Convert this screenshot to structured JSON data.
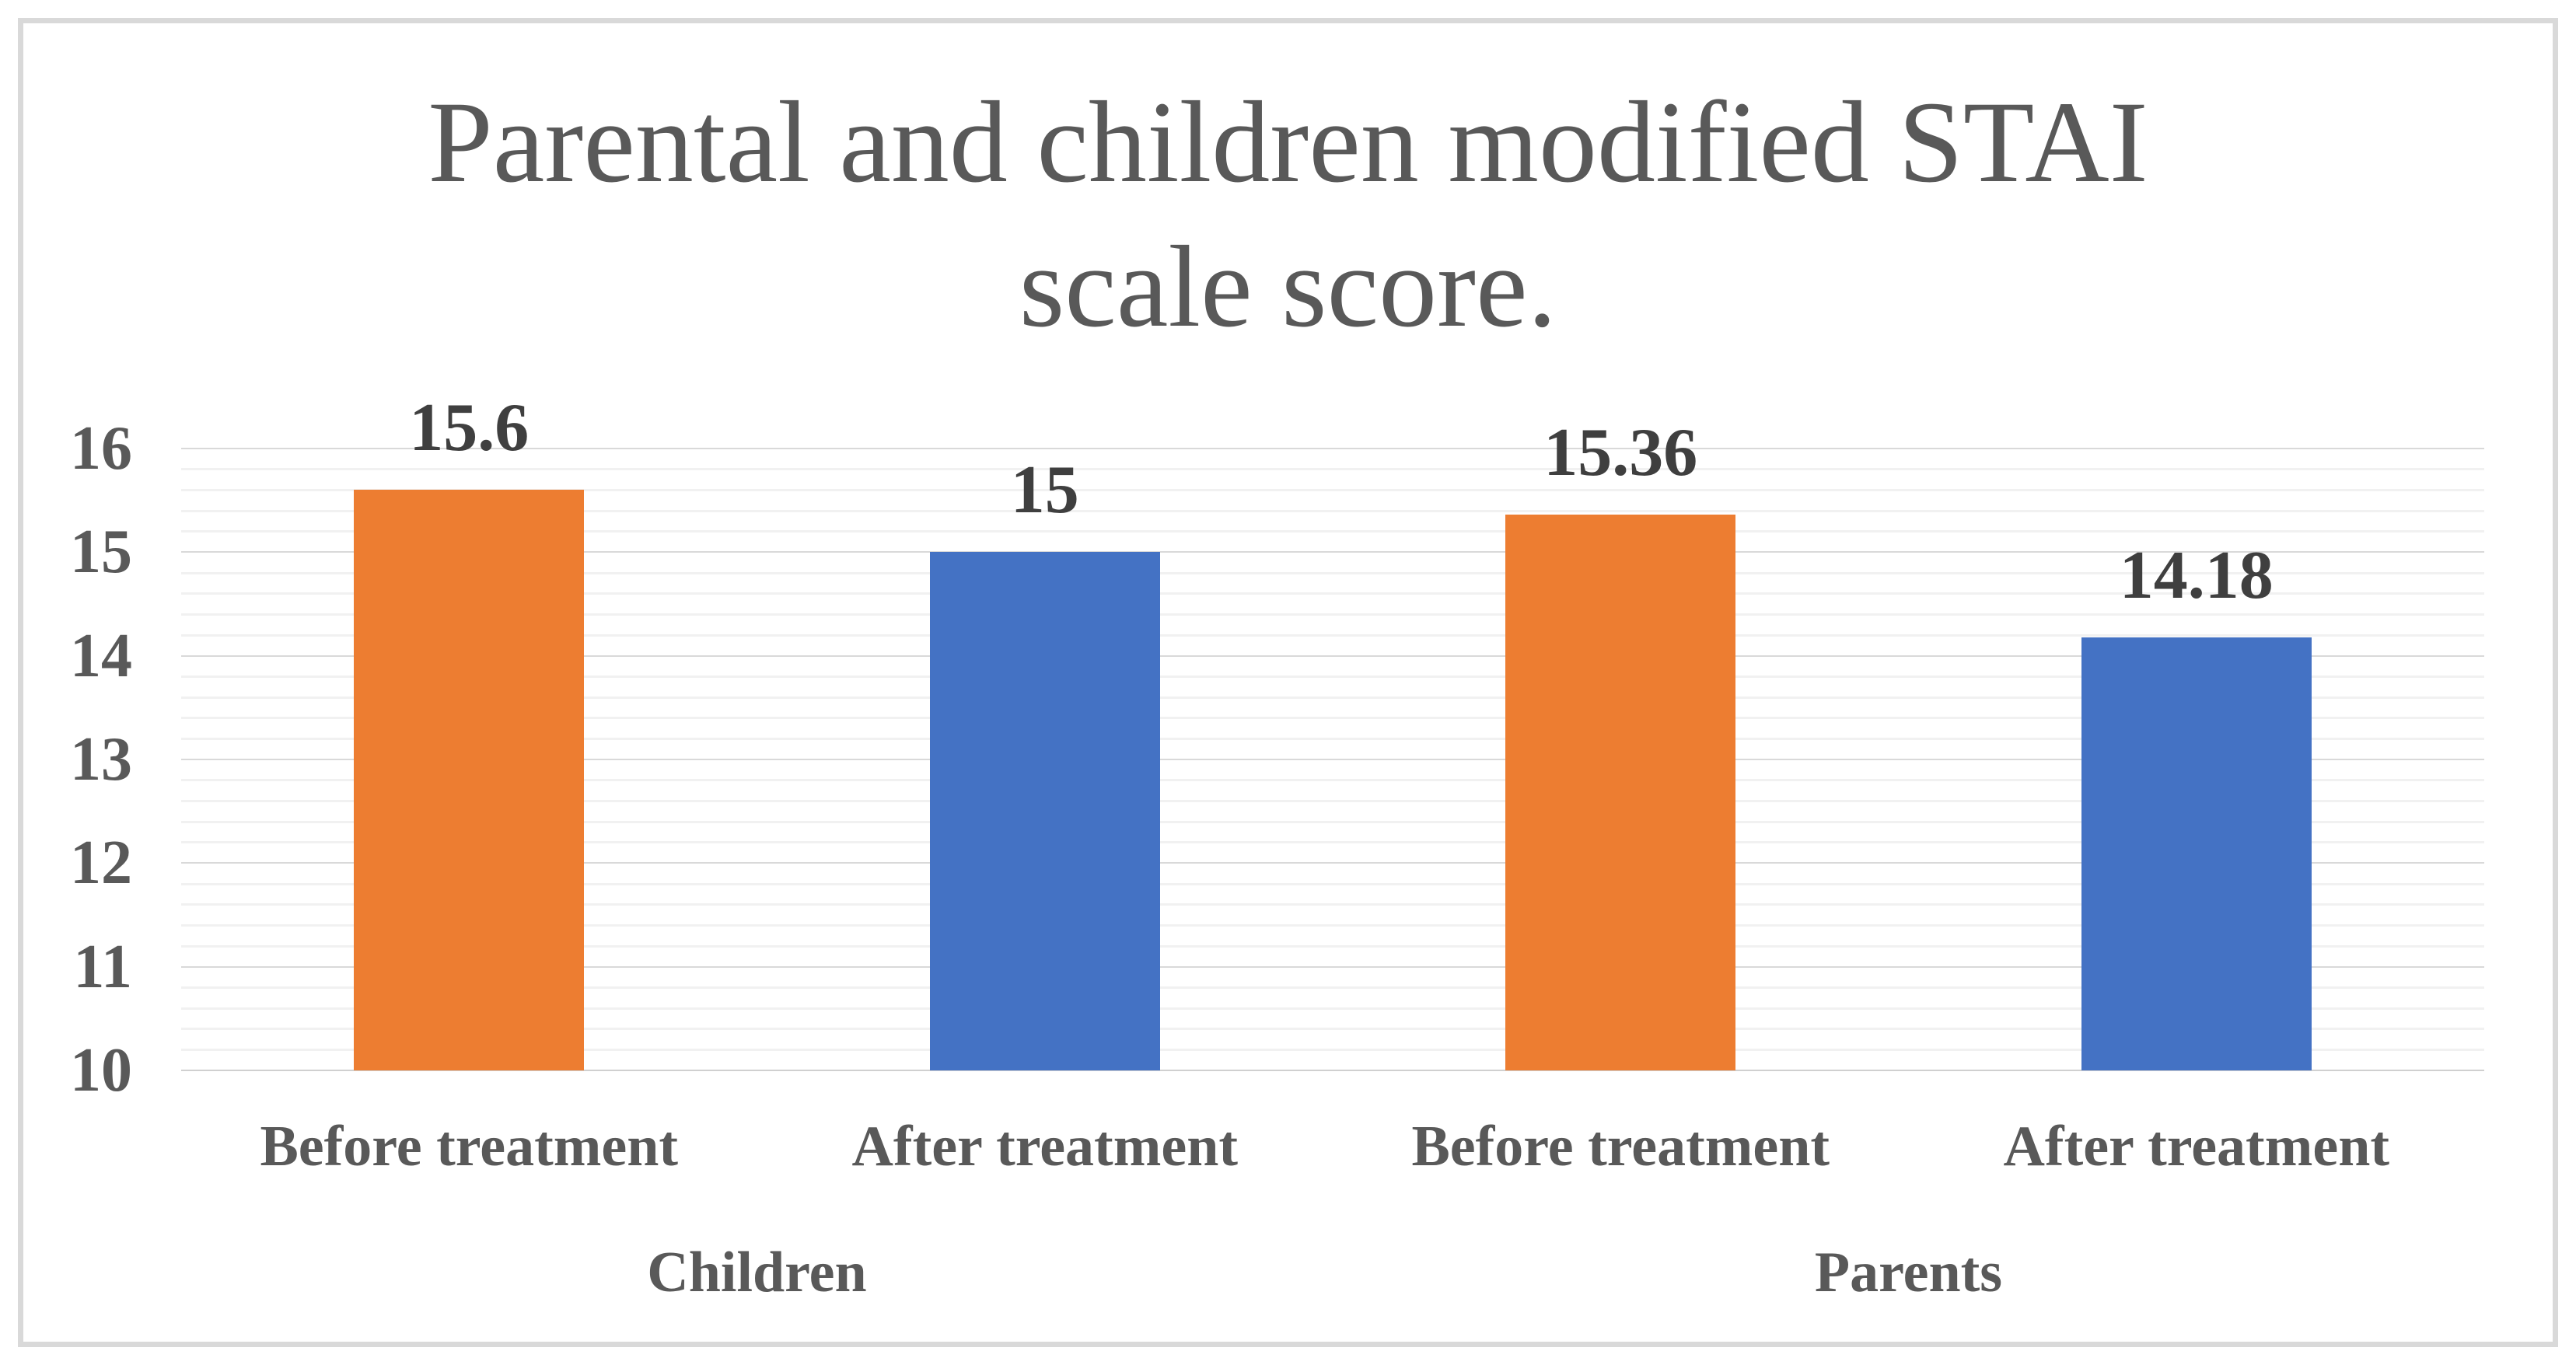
{
  "chart_data": {
    "type": "bar",
    "title": "Parental and children modified STAI scale score.",
    "title_lines": [
      "Parental and children modified STAI",
      "scale score."
    ],
    "groups": [
      {
        "label": "Children",
        "bars": [
          {
            "category": "Before treatment",
            "value": 15.6,
            "value_label": "15.6",
            "color": "#ED7D31"
          },
          {
            "category": "After treatment",
            "value": 15,
            "value_label": "15",
            "color": "#4472C4"
          }
        ]
      },
      {
        "label": "Parents",
        "bars": [
          {
            "category": "Before treatment",
            "value": 15.36,
            "value_label": "15.36",
            "color": "#ED7D31"
          },
          {
            "category": "After treatment",
            "value": 14.18,
            "value_label": "14.18",
            "color": "#4472C4"
          }
        ]
      }
    ],
    "y_axis": {
      "min": 10,
      "max": 16,
      "major_step": 1,
      "minor_step": 0.2,
      "tick_labels": [
        "16",
        "15",
        "14",
        "13",
        "12",
        "11",
        "10"
      ],
      "grid": "on",
      "legend": "none"
    },
    "colors": {
      "before_treatment_bar": "#ED7D31",
      "after_treatment_bar": "#4472C4",
      "title_text": "#595959",
      "axis_text": "#595959",
      "value_label_text": "#3F3F3F",
      "major_gridline": "#D9D9D9",
      "minor_gridline": "#F1F1F1",
      "frame_border": "#D9D9D9",
      "background": "#FFFFFF"
    }
  }
}
